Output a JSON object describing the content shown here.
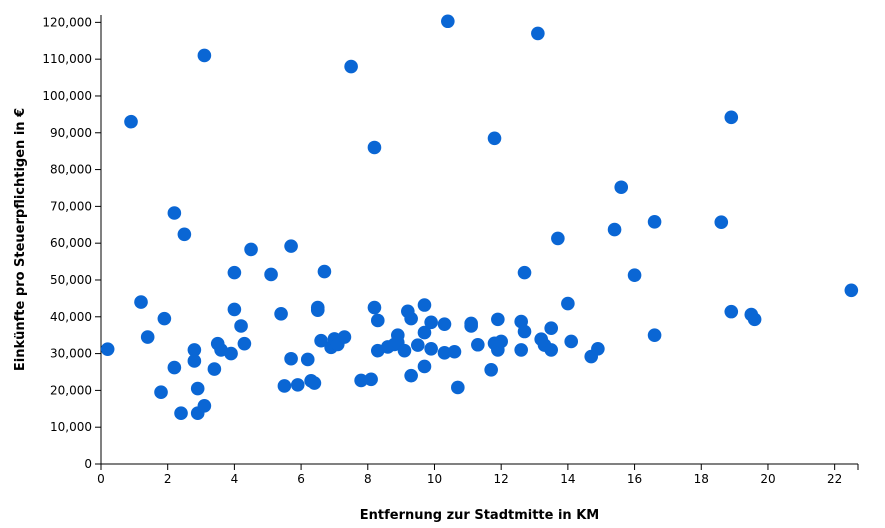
{
  "chart_data": {
    "type": "scatter",
    "xlabel": "Entfernung zur Stadtmitte in KM",
    "ylabel": "Einkünfte pro Steuerpflichtigen in €",
    "xlim": [
      0,
      22.7
    ],
    "ylim": [
      0,
      122000
    ],
    "x_ticks": [
      0,
      2,
      4,
      6,
      8,
      10,
      12,
      14,
      16,
      18,
      20,
      22
    ],
    "x_tick_labels": [
      "0",
      "2",
      "4",
      "6",
      "8",
      "10",
      "12",
      "14",
      "16",
      "18",
      "20",
      "22"
    ],
    "y_ticks": [
      0,
      10000,
      20000,
      30000,
      40000,
      50000,
      60000,
      70000,
      80000,
      90000,
      100000,
      110000,
      120000
    ],
    "y_tick_labels": [
      "0",
      "10,000",
      "20,000",
      "30,000",
      "40,000",
      "50,000",
      "60,000",
      "70,000",
      "80,000",
      "90,000",
      "100,000",
      "110,000",
      "120,000"
    ],
    "grid": false,
    "color": "#0a66d4",
    "points": [
      [
        0.2,
        31200
      ],
      [
        0.9,
        93000
      ],
      [
        1.2,
        44000
      ],
      [
        1.4,
        34500
      ],
      [
        1.8,
        19500
      ],
      [
        1.9,
        39500
      ],
      [
        2.2,
        68200
      ],
      [
        2.2,
        26200
      ],
      [
        2.4,
        13800
      ],
      [
        2.5,
        62400
      ],
      [
        2.8,
        31000
      ],
      [
        2.8,
        28000
      ],
      [
        2.9,
        13800
      ],
      [
        2.9,
        20500
      ],
      [
        3.1,
        15800
      ],
      [
        3.1,
        111000
      ],
      [
        3.4,
        25800
      ],
      [
        3.5,
        32700
      ],
      [
        3.6,
        31000
      ],
      [
        3.9,
        30000
      ],
      [
        4.0,
        42000
      ],
      [
        4.0,
        52000
      ],
      [
        4.2,
        37500
      ],
      [
        4.3,
        32700
      ],
      [
        4.5,
        58300
      ],
      [
        5.1,
        51500
      ],
      [
        5.4,
        40800
      ],
      [
        5.5,
        21200
      ],
      [
        5.7,
        59200
      ],
      [
        5.7,
        28600
      ],
      [
        5.9,
        21500
      ],
      [
        6.2,
        28400
      ],
      [
        6.3,
        22600
      ],
      [
        6.4,
        22000
      ],
      [
        6.5,
        41800
      ],
      [
        6.5,
        42500
      ],
      [
        6.6,
        33500
      ],
      [
        6.7,
        52300
      ],
      [
        6.9,
        31700
      ],
      [
        7.0,
        34000
      ],
      [
        7.1,
        32500
      ],
      [
        7.3,
        34500
      ],
      [
        7.5,
        108000
      ],
      [
        7.8,
        22700
      ],
      [
        8.1,
        23000
      ],
      [
        8.2,
        86000
      ],
      [
        8.2,
        42500
      ],
      [
        8.3,
        39000
      ],
      [
        8.3,
        30800
      ],
      [
        8.6,
        31800
      ],
      [
        8.8,
        32500
      ],
      [
        8.9,
        35000
      ],
      [
        8.9,
        33000
      ],
      [
        9.1,
        30800
      ],
      [
        9.2,
        41500
      ],
      [
        9.3,
        39500
      ],
      [
        9.3,
        24000
      ],
      [
        9.5,
        32300
      ],
      [
        9.7,
        43200
      ],
      [
        9.7,
        35700
      ],
      [
        9.7,
        26500
      ],
      [
        9.9,
        38500
      ],
      [
        9.9,
        31300
      ],
      [
        10.3,
        30200
      ],
      [
        10.3,
        38000
      ],
      [
        10.4,
        120300
      ],
      [
        10.6,
        30500
      ],
      [
        10.7,
        20800
      ],
      [
        11.1,
        37500
      ],
      [
        11.1,
        38200
      ],
      [
        11.3,
        32400
      ],
      [
        11.7,
        25600
      ],
      [
        11.8,
        32800
      ],
      [
        11.8,
        88500
      ],
      [
        11.9,
        31000
      ],
      [
        11.9,
        39300
      ],
      [
        12.0,
        33300
      ],
      [
        12.6,
        31000
      ],
      [
        12.6,
        38700
      ],
      [
        12.7,
        52000
      ],
      [
        12.7,
        36000
      ],
      [
        13.1,
        117000
      ],
      [
        13.2,
        33900
      ],
      [
        13.3,
        32300
      ],
      [
        13.5,
        31000
      ],
      [
        13.5,
        36900
      ],
      [
        13.7,
        61300
      ],
      [
        14.0,
        43600
      ],
      [
        14.1,
        33300
      ],
      [
        14.7,
        29200
      ],
      [
        14.9,
        31300
      ],
      [
        15.4,
        63700
      ],
      [
        15.6,
        75200
      ],
      [
        16.0,
        51300
      ],
      [
        16.6,
        65800
      ],
      [
        16.6,
        35000
      ],
      [
        18.6,
        65700
      ],
      [
        18.9,
        41400
      ],
      [
        18.9,
        94200
      ],
      [
        19.5,
        40600
      ],
      [
        19.6,
        39300
      ],
      [
        22.5,
        47200
      ]
    ]
  }
}
